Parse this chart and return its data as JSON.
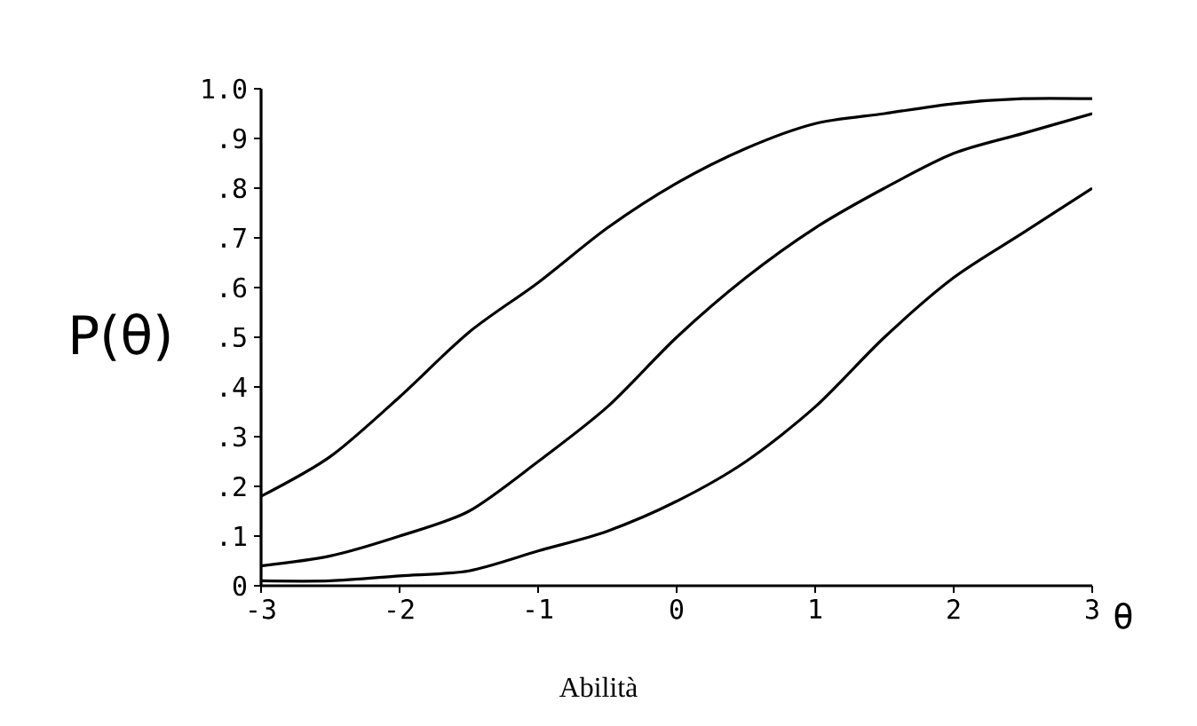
{
  "chart_data": {
    "type": "line",
    "xlabel": "θ",
    "ylabel": "P(θ)",
    "annotations": [
      "Abilità"
    ],
    "x": [
      -3,
      -2.5,
      -2,
      -1.5,
      -1,
      -0.5,
      0,
      0.5,
      1,
      1.5,
      2,
      2.5,
      3
    ],
    "series": [
      {
        "color": "#000000",
        "values": [
          0.18,
          0.26,
          0.38,
          0.51,
          0.61,
          0.72,
          0.81,
          0.88,
          0.93,
          0.95,
          0.97,
          0.98,
          0.98
        ]
      },
      {
        "color": "#000000",
        "values": [
          0.04,
          0.06,
          0.1,
          0.15,
          0.25,
          0.36,
          0.5,
          0.62,
          0.72,
          0.8,
          0.87,
          0.91,
          0.95
        ]
      },
      {
        "color": "#000000",
        "values": [
          0.01,
          0.01,
          0.02,
          0.03,
          0.07,
          0.11,
          0.17,
          0.25,
          0.36,
          0.5,
          0.62,
          0.71,
          0.8
        ]
      }
    ],
    "xlim": [
      -3,
      3
    ],
    "ylim": [
      0,
      1.0
    ],
    "xticks": [
      -3,
      -2,
      -1,
      0,
      1,
      2,
      3
    ],
    "yticks": [
      {
        "value": 0,
        "label": "0"
      },
      {
        "value": 0.1,
        "label": ".1"
      },
      {
        "value": 0.2,
        "label": ".2"
      },
      {
        "value": 0.3,
        "label": ".3"
      },
      {
        "value": 0.4,
        "label": ".4"
      },
      {
        "value": 0.5,
        "label": ".5"
      },
      {
        "value": 0.6,
        "label": ".6"
      },
      {
        "value": 0.7,
        "label": ".7"
      },
      {
        "value": 0.8,
        "label": ".8"
      },
      {
        "value": 0.9,
        "label": ".9"
      },
      {
        "value": 1.0,
        "label": "1.0"
      }
    ],
    "grid": false,
    "line_style": "solid",
    "marker": "none"
  }
}
